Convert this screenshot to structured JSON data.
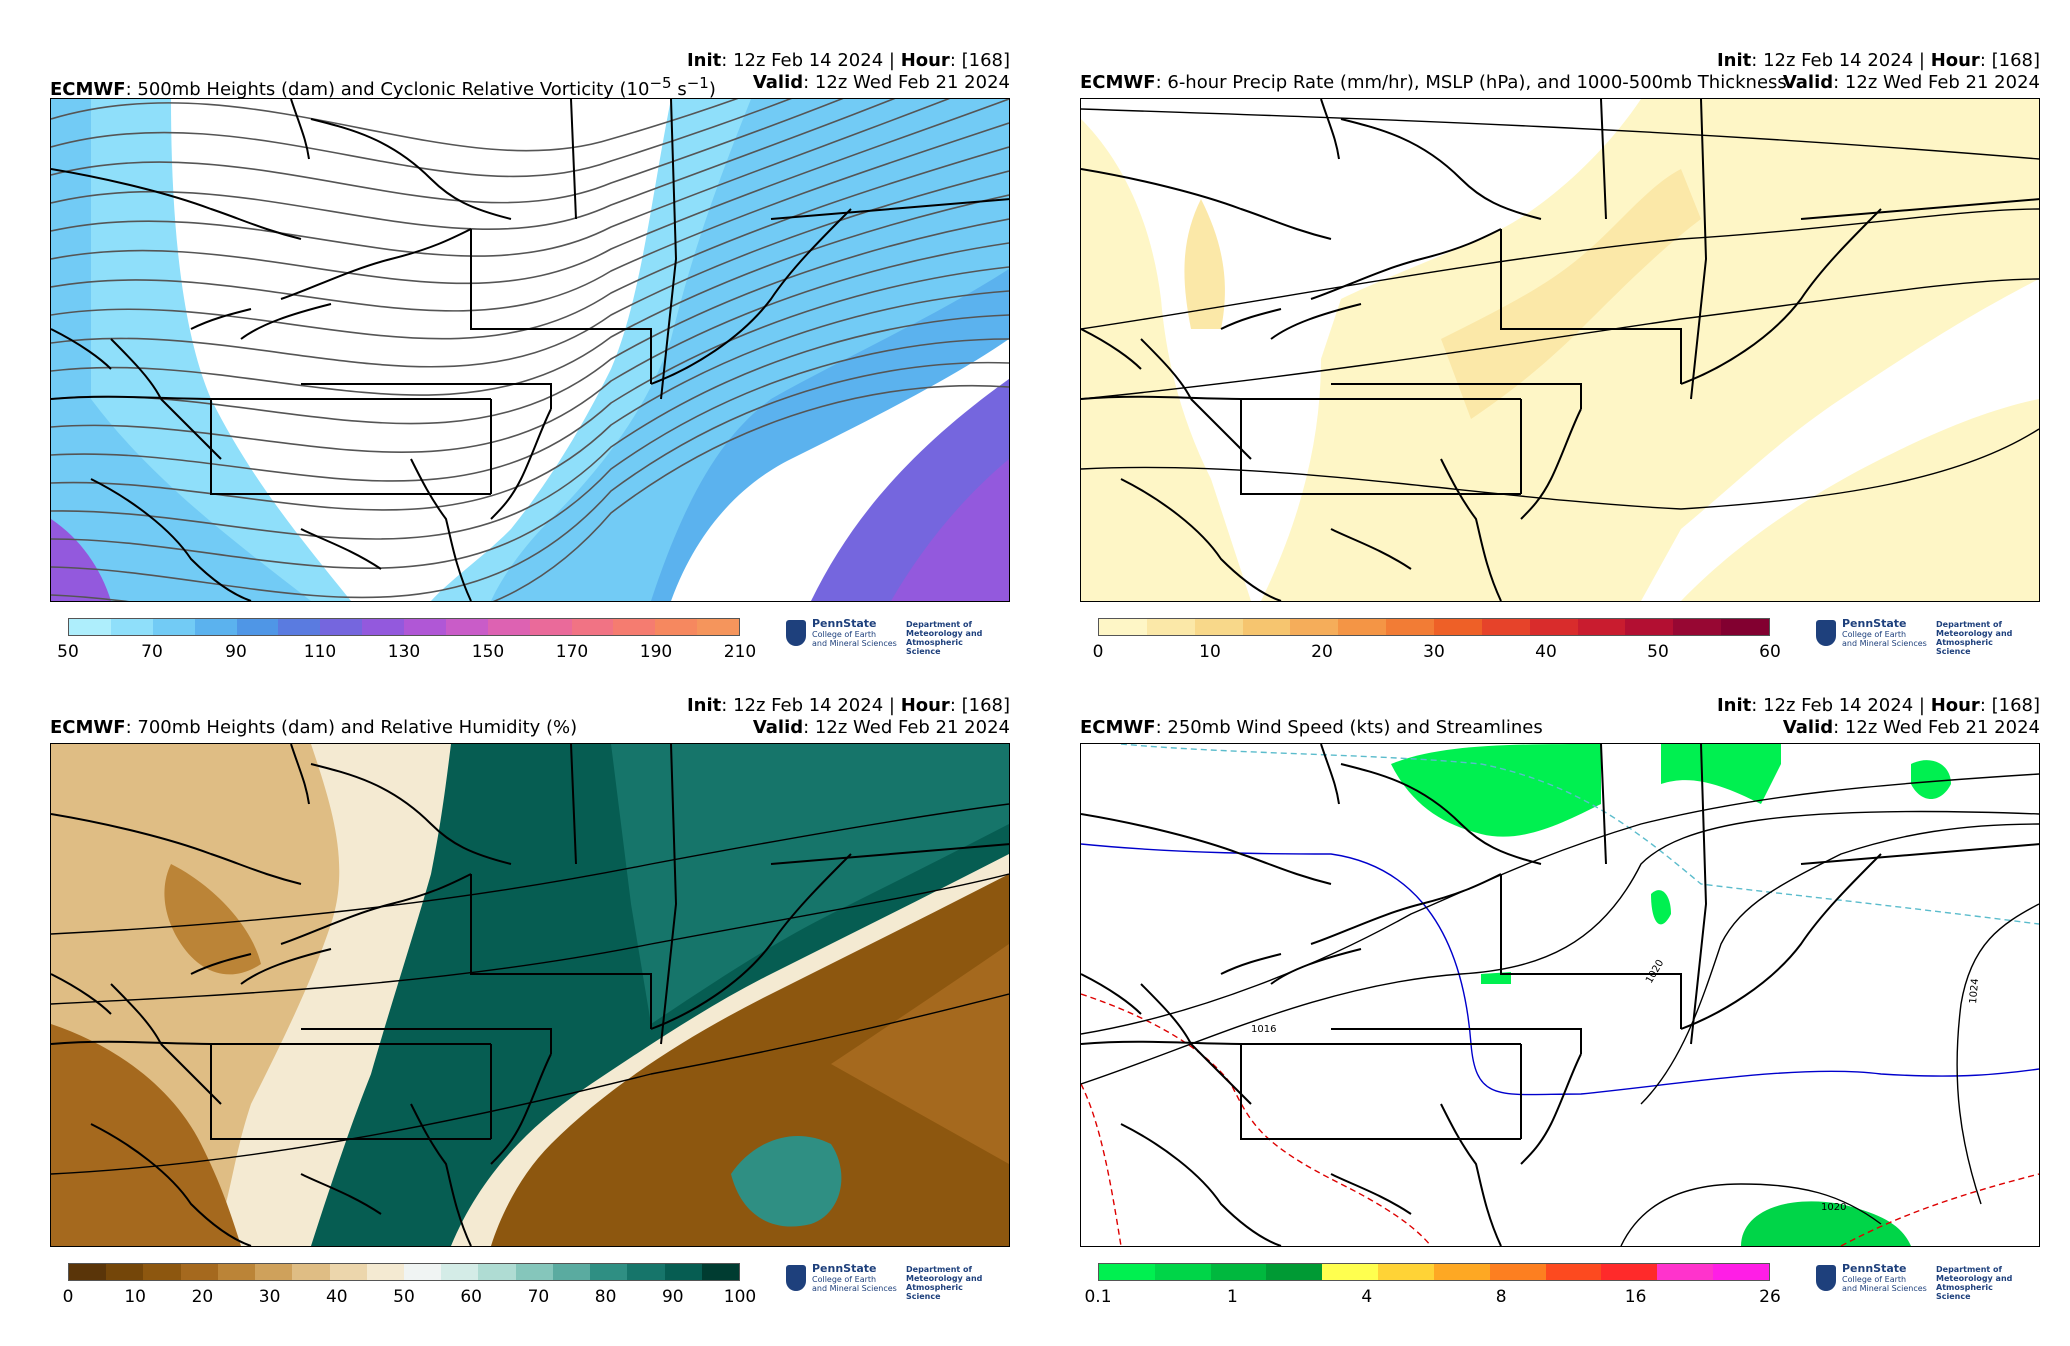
{
  "panels": [
    {
      "init_label": "Init",
      "init_value": ": 12z Feb 14 2024 | ",
      "hour_label": "Hour",
      "hour_value": ": [168]",
      "model": "ECMWF",
      "title": ": 500mb Heights (dam) and Cyclonic Relative Vorticity (10",
      "title_sup1": "−5",
      "title_mid": " s",
      "title_sup2": "−1",
      "title_end": ")",
      "valid_label": "Valid",
      "valid_value": ": 12z Wed Feb 21 2024",
      "colorbar_colors": [
        "#aeeefc",
        "#8fdffa",
        "#72cbf5",
        "#5bb2ee",
        "#4f96e6",
        "#5a7be0",
        "#7566de",
        "#9359dd",
        "#b057d6",
        "#c95cc8",
        "#dd62b2",
        "#ea6a9a",
        "#f17384",
        "#f57c70",
        "#f6885f",
        "#f5955c"
      ],
      "colorbar_ticks": [
        "50",
        "70",
        "90",
        "110",
        "130",
        "150",
        "170",
        "190",
        "210"
      ]
    },
    {
      "init_label": "Init",
      "init_value": ": 12z Feb 14 2024 | ",
      "hour_label": "Hour",
      "hour_value": ": [168]",
      "model": "ECMWF",
      "title": ": 6-hour Precip Rate (mm/hr), MSLP (hPa), and 1000-500mb Thickness",
      "valid_label": "Valid",
      "valid_value": ": 12z Wed Feb 21 2024",
      "colorbar_colors": [
        "#fef6c6",
        "#fbe8a8",
        "#f8d88a",
        "#f6c56f",
        "#f5ad5a",
        "#f49545",
        "#f27c35",
        "#ee6027",
        "#e6432a",
        "#d92c2c",
        "#c91c2f",
        "#b30f32",
        "#970733",
        "#820030"
      ],
      "colorbar_ticks": [
        "0",
        "10",
        "20",
        "30",
        "40",
        "50",
        "60"
      ]
    },
    {
      "init_label": "Init",
      "init_value": ": 12z Feb 14 2024 | ",
      "hour_label": "Hour",
      "hour_value": ": [168]",
      "model": "ECMWF",
      "title": ": 700mb Heights (dam) and Relative Humidity (%)",
      "valid_label": "Valid",
      "valid_value": ": 12z Wed Feb 21 2024",
      "colorbar_colors": [
        "#5a3509",
        "#744609",
        "#8d570f",
        "#a5691e",
        "#bb8437",
        "#cfa15b",
        "#dfbd84",
        "#ecd6ac",
        "#f4ead2",
        "#f0f4f3",
        "#d4ece7",
        "#afdcd3",
        "#85c6bb",
        "#5aaba0",
        "#2f8f83",
        "#16756a",
        "#065d52",
        "#003c31"
      ],
      "colorbar_ticks": [
        "0",
        "10",
        "20",
        "30",
        "40",
        "50",
        "60",
        "70",
        "80",
        "90",
        "100"
      ]
    },
    {
      "init_label": "Init",
      "init_value": ": 12z Feb 14 2024 | ",
      "hour_label": "Hour",
      "hour_value": ": [168]",
      "model": "ECMWF",
      "title": ": 250mb Wind Speed (kts) and Streamlines",
      "valid_label": "Valid",
      "valid_value": ": 12z Wed Feb 21 2024",
      "colorbar_colors": [
        "#00f050",
        "#00d548",
        "#00b83e",
        "#009a34",
        "#ffff4f",
        "#ffd336",
        "#fea823",
        "#fd7f20",
        "#fd4a1f",
        "#ff2a2a",
        "#ff33cc",
        "#ff1ee6"
      ],
      "colorbar_ticks": [
        "0.1",
        "1",
        "4",
        "8",
        "16",
        "26"
      ],
      "isobar_labels": [
        "1016",
        "1020",
        "1024",
        "1020"
      ]
    }
  ],
  "logo": {
    "university": "PennState",
    "college_line1": "College of Earth",
    "college_line2": "and Mineral Sciences",
    "dept_line1": "Department of",
    "dept_line2": "Meteorology and",
    "dept_line3": "Atmospheric Science"
  }
}
